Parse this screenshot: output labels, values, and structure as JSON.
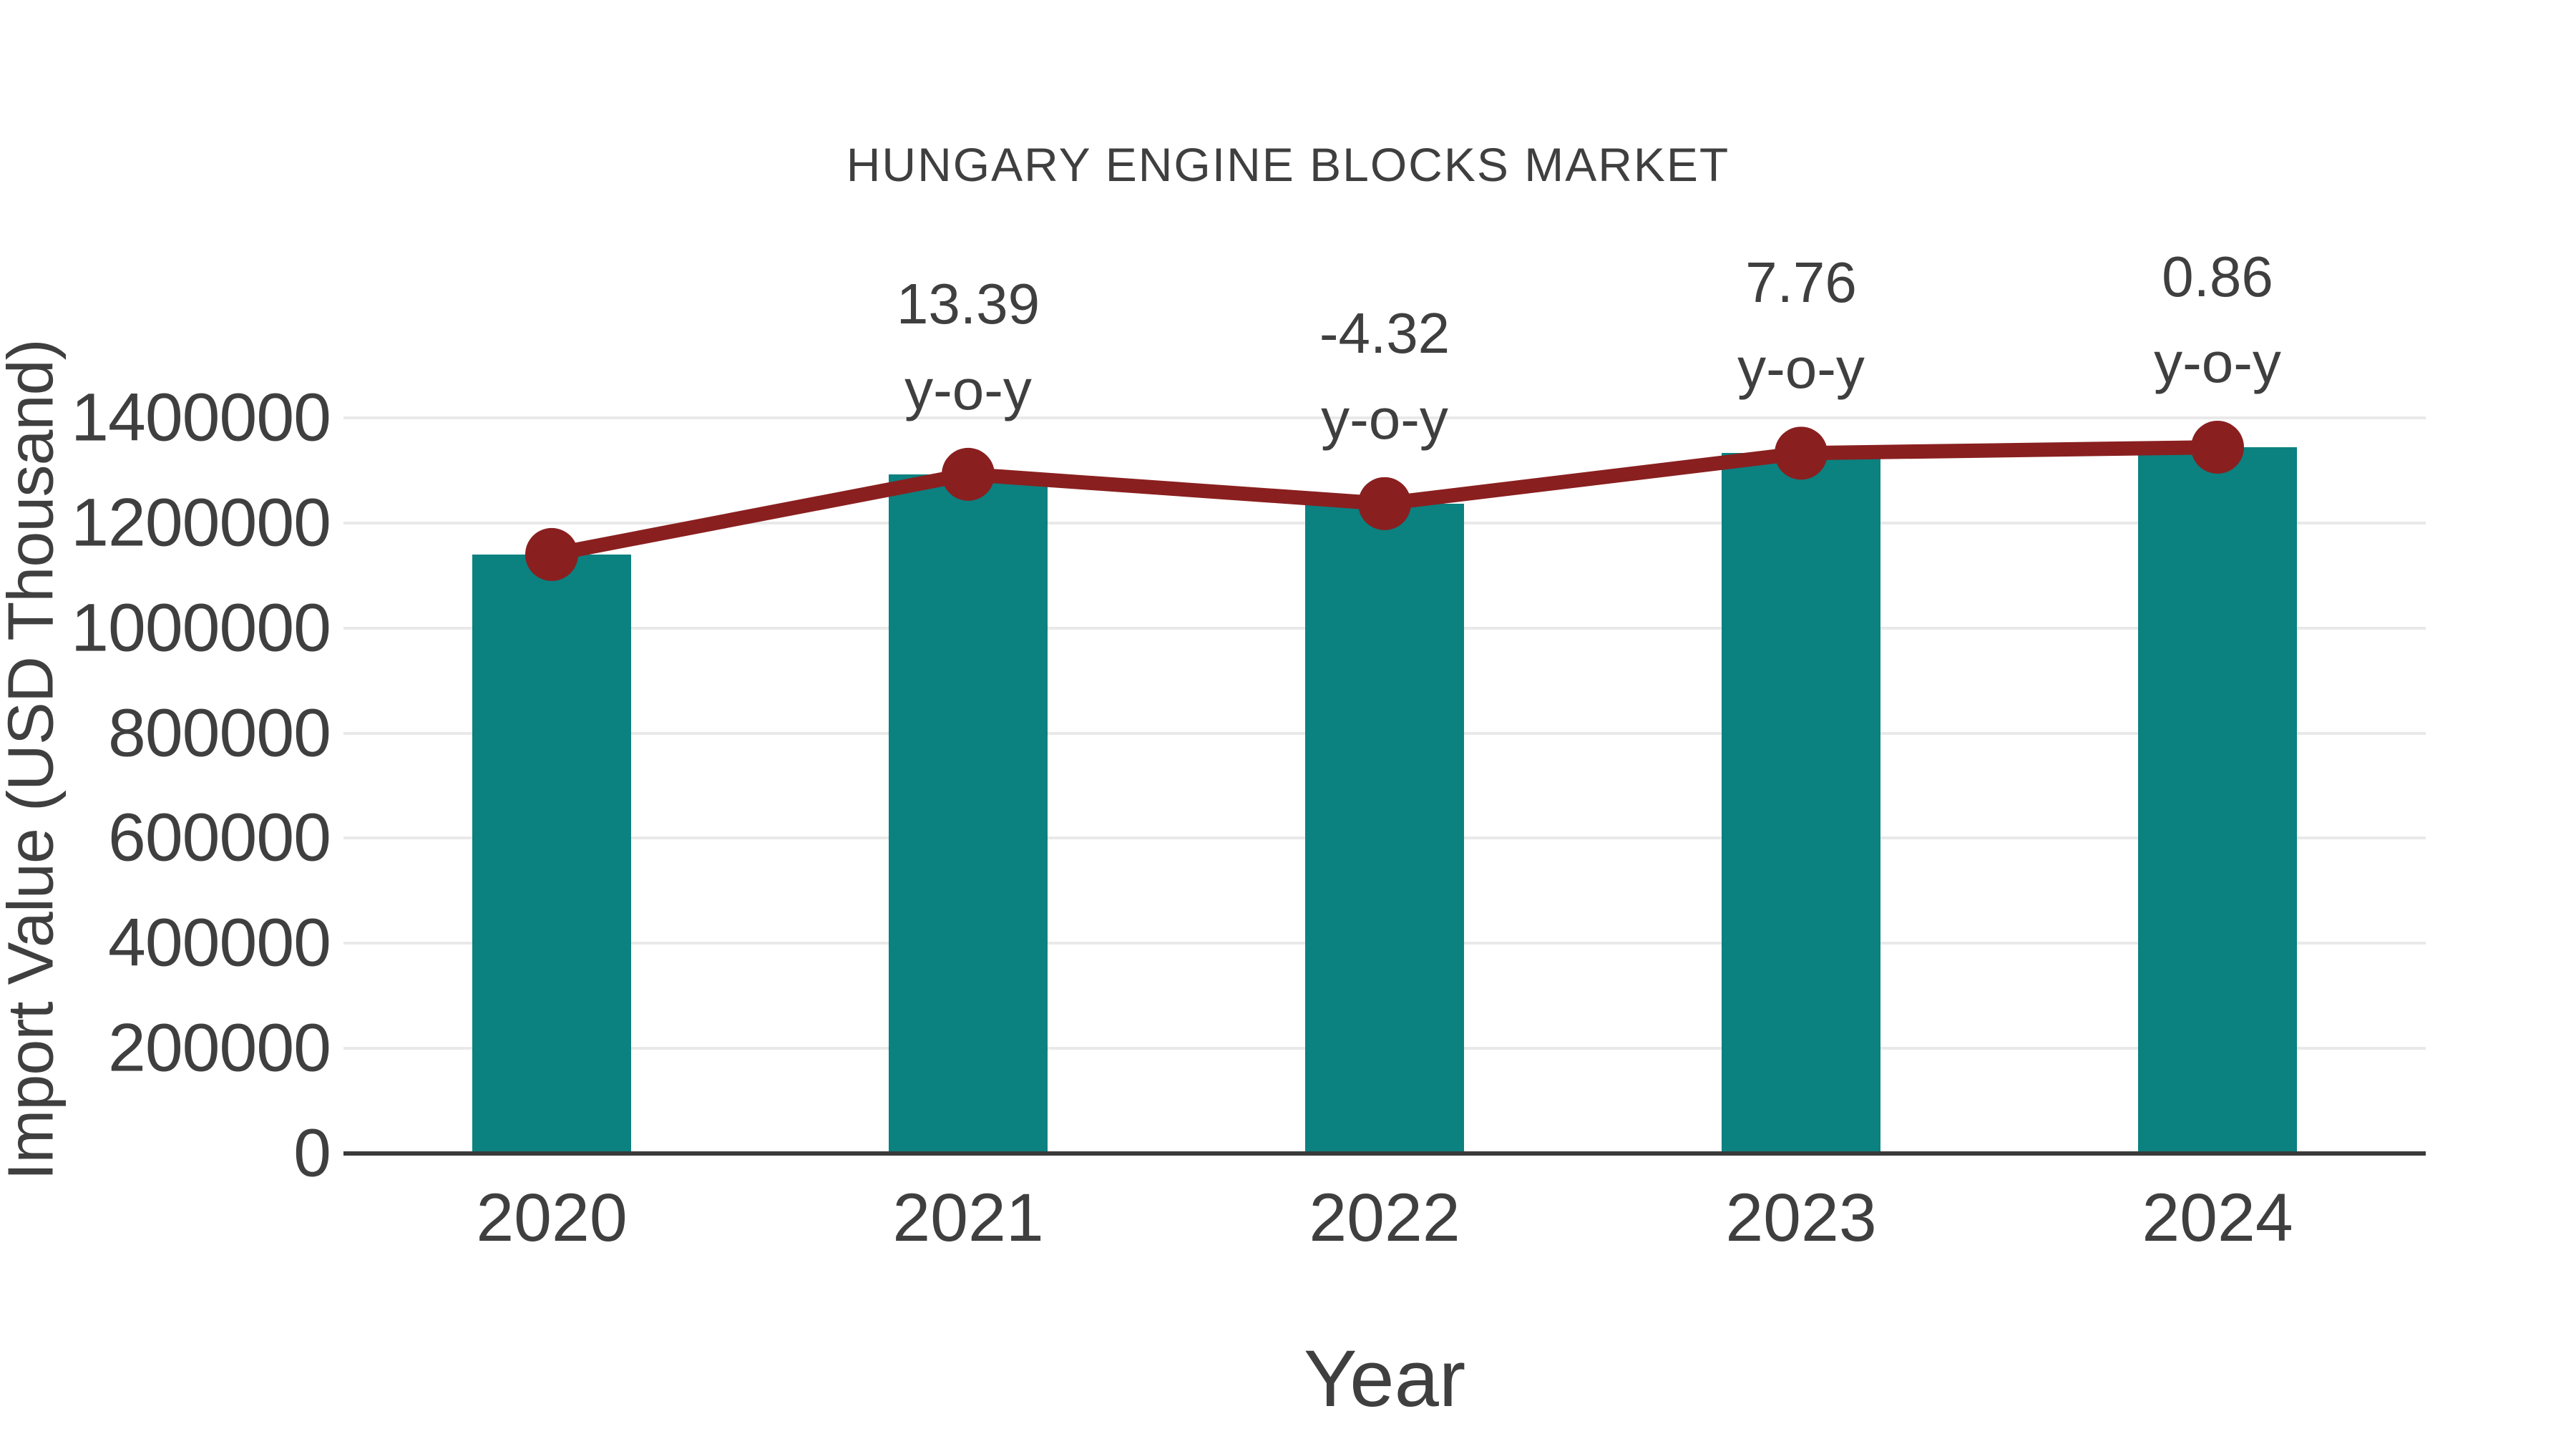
{
  "title": "HUNGARY ENGINE BLOCKS MARKET",
  "chart_data": {
    "type": "bar",
    "title": "HUNGARY ENGINE BLOCKS MARKET",
    "xlabel": "Year",
    "ylabel": "Import Value (USD Thousand)",
    "categories": [
      "2020",
      "2021",
      "2022",
      "2023",
      "2024"
    ],
    "series": [
      {
        "name": "Import Value bars",
        "type": "bar",
        "values": [
          1140000,
          1292600,
          1236800,
          1332800,
          1344200
        ]
      },
      {
        "name": "Import Value trend line",
        "type": "line",
        "values": [
          1140000,
          1292600,
          1236800,
          1332800,
          1344200
        ]
      }
    ],
    "annotations": [
      {
        "category": "2021",
        "value_label": "13.39",
        "unit_label": "y-o-y"
      },
      {
        "category": "2022",
        "value_label": "-4.32",
        "unit_label": "y-o-y"
      },
      {
        "category": "2023",
        "value_label": "7.76",
        "unit_label": "y-o-y"
      },
      {
        "category": "2024",
        "value_label": "0.86",
        "unit_label": "y-o-y"
      }
    ],
    "ylim": [
      0,
      1400000
    ],
    "yticks": [
      0,
      200000,
      400000,
      600000,
      800000,
      1000000,
      1200000,
      1400000
    ],
    "ytick_labels": [
      "0",
      "200000",
      "400000",
      "600000",
      "800000",
      "1000000",
      "1200000",
      "1400000"
    ],
    "grid": "horizontal",
    "legend_position": "none",
    "colors": {
      "bar": "#0b8180",
      "line": "#8a1f1f",
      "text": "#3f3f3f",
      "grid": "#e9e9e9",
      "axis": "#3a3a3a",
      "background": "#ffffff"
    }
  }
}
